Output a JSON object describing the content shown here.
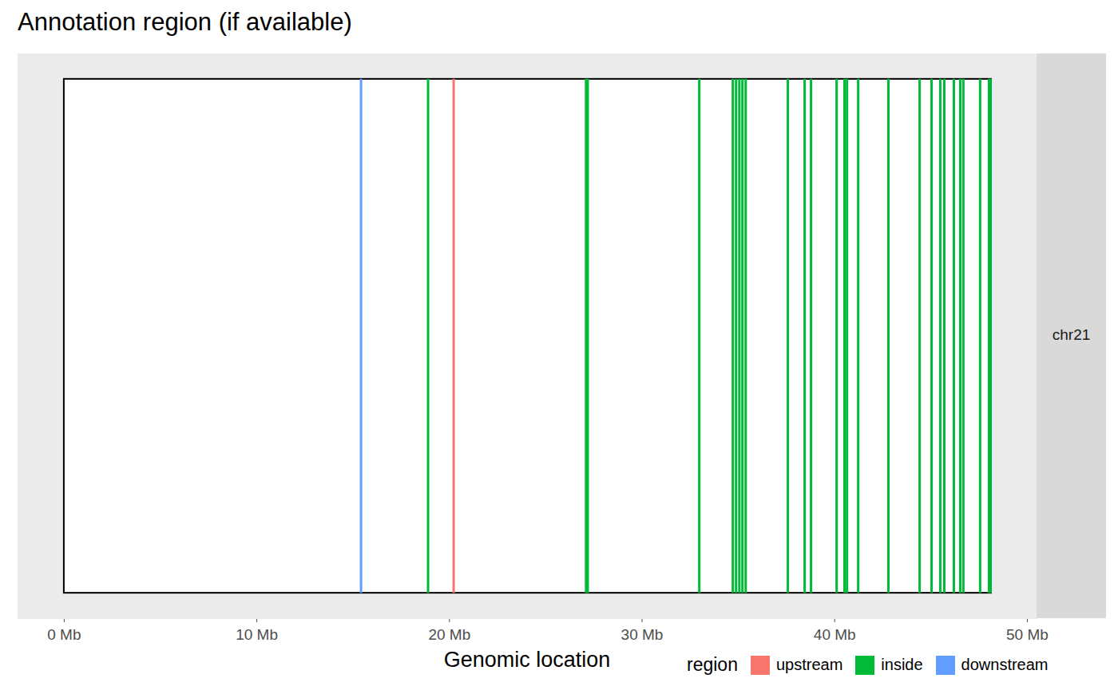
{
  "chart_data": {
    "type": "karyogram",
    "title": "Annotation region (if available)",
    "x_label": "Genomic location",
    "facet": "chr21",
    "chromosome": {
      "start": 0,
      "end": 48.13
    },
    "xlim": [
      -2.4,
      50.5
    ],
    "xticks": [
      {
        "value": 0,
        "label": "0 Mb"
      },
      {
        "value": 10,
        "label": "10 Mb"
      },
      {
        "value": 20,
        "label": "20 Mb"
      },
      {
        "value": 30,
        "label": "30 Mb"
      },
      {
        "value": 40,
        "label": "40 Mb"
      },
      {
        "value": 50,
        "label": "50 Mb"
      }
    ],
    "tick_labels": "x",
    "grid": false,
    "legend": "bottom-right",
    "legend_title": "region",
    "series": [
      {
        "name": "upstream",
        "color": "#f8766d",
        "values": [
          20.22
        ]
      },
      {
        "name": "inside",
        "color": "#00ba38",
        "values": [
          18.89,
          27.09,
          27.18,
          32.97,
          34.71,
          34.88,
          35.05,
          35.21,
          35.38,
          37.57,
          38.44,
          38.77,
          40.1,
          40.51,
          40.64,
          41.22,
          42.79,
          44.41,
          45.03,
          45.48,
          45.69,
          46.19,
          46.52,
          46.68,
          47.55,
          48.01,
          48.09
        ]
      },
      {
        "name": "downstream",
        "color": "#619cff",
        "values": [
          15.41
        ]
      }
    ]
  }
}
